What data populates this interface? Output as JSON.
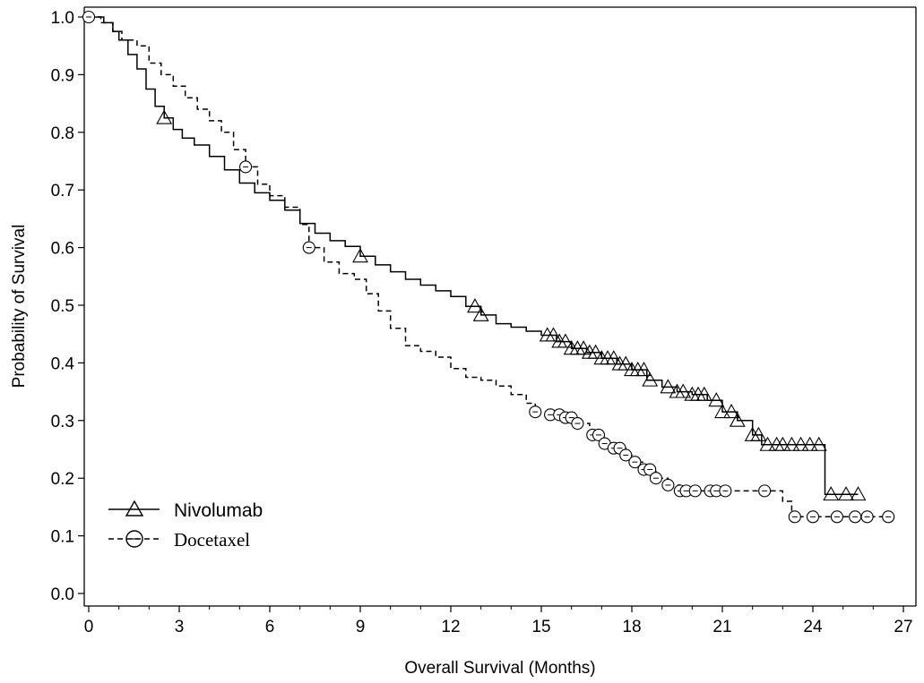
{
  "chart_data": {
    "type": "line",
    "xlabel": "Overall Survival (Months)",
    "ylabel": "Probability of Survival",
    "xlim": [
      0,
      27
    ],
    "ylim": [
      0,
      1.0
    ],
    "x_ticks": [
      "0",
      "3",
      "6",
      "9",
      "12",
      "15",
      "18",
      "21",
      "24",
      "27"
    ],
    "y_ticks": [
      "0.0",
      "0.1",
      "0.2",
      "0.3",
      "0.4",
      "0.5",
      "0.6",
      "0.7",
      "0.8",
      "0.9",
      "1.0"
    ],
    "legend": {
      "placement": "bottom-left"
    },
    "series": [
      {
        "name": "Nivolumab",
        "line_style": "solid",
        "marker": "triangle",
        "color": "#000000",
        "path": [
          [
            0,
            1.0
          ],
          [
            0.5,
            0.99
          ],
          [
            0.8,
            0.975
          ],
          [
            1.0,
            0.96
          ],
          [
            1.3,
            0.935
          ],
          [
            1.6,
            0.91
          ],
          [
            1.9,
            0.875
          ],
          [
            2.2,
            0.845
          ],
          [
            2.5,
            0.825
          ],
          [
            2.8,
            0.805
          ],
          [
            3.1,
            0.79
          ],
          [
            3.5,
            0.778
          ],
          [
            4.0,
            0.758
          ],
          [
            4.5,
            0.735
          ],
          [
            5.0,
            0.712
          ],
          [
            5.5,
            0.695
          ],
          [
            6.0,
            0.682
          ],
          [
            6.5,
            0.665
          ],
          [
            7.0,
            0.642
          ],
          [
            7.5,
            0.625
          ],
          [
            8.0,
            0.612
          ],
          [
            8.5,
            0.602
          ],
          [
            9.0,
            0.585
          ],
          [
            9.5,
            0.57
          ],
          [
            10.0,
            0.558
          ],
          [
            10.5,
            0.545
          ],
          [
            11.0,
            0.535
          ],
          [
            11.5,
            0.525
          ],
          [
            12.0,
            0.515
          ],
          [
            12.5,
            0.498
          ],
          [
            13.0,
            0.483
          ],
          [
            13.5,
            0.468
          ],
          [
            14.0,
            0.462
          ],
          [
            14.5,
            0.455
          ],
          [
            15.0,
            0.448
          ],
          [
            15.5,
            0.437
          ],
          [
            16.0,
            0.425
          ],
          [
            16.5,
            0.418
          ],
          [
            17.0,
            0.408
          ],
          [
            17.5,
            0.398
          ],
          [
            18.0,
            0.388
          ],
          [
            18.5,
            0.37
          ],
          [
            19.0,
            0.358
          ],
          [
            19.5,
            0.35
          ],
          [
            20.0,
            0.345
          ],
          [
            20.5,
            0.335
          ],
          [
            21.0,
            0.315
          ],
          [
            21.5,
            0.3
          ],
          [
            22.0,
            0.275
          ],
          [
            22.3,
            0.258
          ],
          [
            24.4,
            0.258
          ],
          [
            24.4,
            0.172
          ],
          [
            25.5,
            0.172
          ]
        ],
        "censored_x": [
          2.5,
          9.0,
          12.8,
          13.0,
          15.2,
          15.4,
          15.6,
          15.8,
          16.0,
          16.2,
          16.4,
          16.6,
          16.8,
          17.0,
          17.2,
          17.4,
          17.6,
          17.8,
          18.0,
          18.2,
          18.4,
          18.6,
          19.2,
          19.5,
          19.7,
          20.0,
          20.2,
          20.4,
          20.8,
          21.0,
          21.3,
          21.5,
          22.0,
          22.2,
          22.5,
          22.8,
          23.0,
          23.3,
          23.6,
          23.9,
          24.2,
          24.6,
          25.1,
          25.5
        ]
      },
      {
        "name": "Docetaxel",
        "line_style": "dashed",
        "marker": "circle",
        "color": "#000000",
        "path": [
          [
            0,
            1.0
          ],
          [
            0.4,
            0.99
          ],
          [
            0.8,
            0.975
          ],
          [
            1.1,
            0.96
          ],
          [
            1.6,
            0.95
          ],
          [
            2.0,
            0.92
          ],
          [
            2.4,
            0.9
          ],
          [
            2.8,
            0.88
          ],
          [
            3.2,
            0.86
          ],
          [
            3.6,
            0.84
          ],
          [
            4.0,
            0.82
          ],
          [
            4.4,
            0.8
          ],
          [
            4.8,
            0.77
          ],
          [
            5.2,
            0.74
          ],
          [
            5.6,
            0.71
          ],
          [
            6.0,
            0.69
          ],
          [
            6.5,
            0.67
          ],
          [
            7.0,
            0.64
          ],
          [
            7.3,
            0.6
          ],
          [
            7.8,
            0.575
          ],
          [
            8.3,
            0.555
          ],
          [
            8.8,
            0.545
          ],
          [
            9.2,
            0.52
          ],
          [
            9.6,
            0.49
          ],
          [
            10.0,
            0.46
          ],
          [
            10.5,
            0.43
          ],
          [
            11.0,
            0.42
          ],
          [
            11.5,
            0.41
          ],
          [
            12.0,
            0.39
          ],
          [
            12.5,
            0.375
          ],
          [
            13.0,
            0.37
          ],
          [
            13.5,
            0.36
          ],
          [
            14.0,
            0.345
          ],
          [
            14.5,
            0.33
          ],
          [
            14.8,
            0.315
          ],
          [
            15.3,
            0.31
          ],
          [
            15.7,
            0.305
          ],
          [
            16.2,
            0.295
          ],
          [
            16.6,
            0.275
          ],
          [
            17.0,
            0.26
          ],
          [
            17.4,
            0.252
          ],
          [
            17.8,
            0.24
          ],
          [
            18.0,
            0.228
          ],
          [
            18.4,
            0.215
          ],
          [
            18.8,
            0.2
          ],
          [
            19.2,
            0.188
          ],
          [
            19.6,
            0.178
          ],
          [
            22.5,
            0.178
          ],
          [
            23.0,
            0.16
          ],
          [
            23.3,
            0.133
          ],
          [
            26.5,
            0.133
          ]
        ],
        "censored_x": [
          0,
          5.2,
          7.3,
          14.8,
          15.3,
          15.6,
          15.8,
          16.0,
          16.2,
          16.7,
          16.9,
          17.1,
          17.4,
          17.6,
          17.8,
          18.1,
          18.4,
          18.6,
          18.8,
          19.2,
          19.6,
          19.8,
          20.1,
          20.6,
          20.8,
          21.1,
          22.4,
          23.4,
          24.0,
          24.8,
          25.4,
          25.8,
          26.5
        ]
      }
    ]
  }
}
